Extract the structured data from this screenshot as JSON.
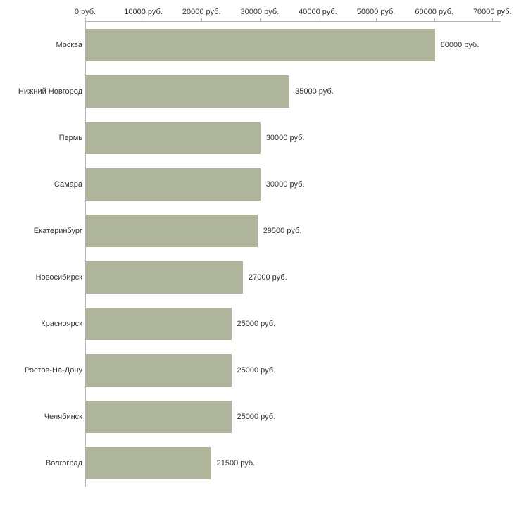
{
  "chart_data": {
    "type": "bar",
    "orientation": "horizontal",
    "title": "",
    "xlabel": "",
    "ylabel": "",
    "grid": false,
    "legend": "none",
    "xlim": [
      0,
      71300
    ],
    "categories": [
      "Москва",
      "Нижний Новгород",
      "Пермь",
      "Самара",
      "Екатеринбург",
      "Новосибирск",
      "Красноярск",
      "Ростов-На-Дону",
      "Челябинск",
      "Волгоград"
    ],
    "values": [
      60000,
      35000,
      30000,
      30000,
      29500,
      27000,
      25000,
      25000,
      25000,
      21500
    ],
    "value_labels": [
      "60000 руб.",
      "35000 руб.",
      "30000 руб.",
      "30000 руб.",
      "29500 руб.",
      "27000 руб.",
      "25000 руб.",
      "25000 руб.",
      "25000 руб.",
      "21500 руб."
    ],
    "x_ticks": [
      {
        "value": 0,
        "label": "0 руб."
      },
      {
        "value": 10000,
        "label": "10000 руб."
      },
      {
        "value": 20000,
        "label": "20000 руб."
      },
      {
        "value": 30000,
        "label": "30000 руб."
      },
      {
        "value": 40000,
        "label": "40000 руб."
      },
      {
        "value": 50000,
        "label": "50000 руб."
      },
      {
        "value": 60000,
        "label": "60000 руб."
      },
      {
        "value": 70000,
        "label": "70000 руб."
      }
    ],
    "colors": {
      "bar_fill": "#aeb59b",
      "axis_line": "#b3b3b3",
      "text": "#333333",
      "background": "#ffffff"
    }
  }
}
